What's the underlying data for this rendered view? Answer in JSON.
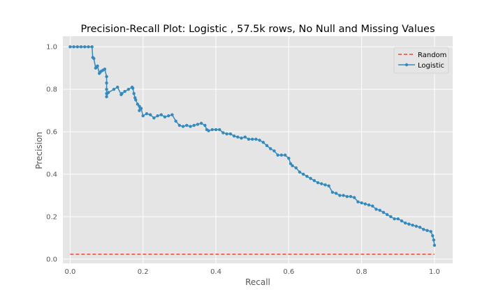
{
  "chart_data": {
    "type": "line",
    "title": "Precision-Recall Plot: Logistic , 57.5k rows, No Null and Missing Values",
    "xlabel": "Recall",
    "ylabel": "Precision",
    "xlim": [
      -0.02,
      1.05
    ],
    "ylim": [
      -0.02,
      1.05
    ],
    "x_ticks": [
      0.0,
      0.2,
      0.4,
      0.6,
      0.8,
      1.0
    ],
    "x_tick_labels": [
      "0.0",
      "0.2",
      "0.4",
      "0.6",
      "0.8",
      "1.0"
    ],
    "y_ticks": [
      0.0,
      0.2,
      0.4,
      0.6,
      0.8,
      1.0
    ],
    "y_tick_labels": [
      "0.0",
      "0.2",
      "0.4",
      "0.6",
      "0.8",
      "1.0"
    ],
    "grid": true,
    "legend_position": "top-right",
    "series": [
      {
        "name": "Random",
        "style": "dashed",
        "color": "#E24A33",
        "marker": false,
        "x": [
          0.0,
          1.0
        ],
        "y": [
          0.023,
          0.023
        ]
      },
      {
        "name": "Logistic",
        "style": "solid",
        "color": "#348ABD",
        "marker": true,
        "x": [
          0.0,
          0.01,
          0.02,
          0.03,
          0.04,
          0.05,
          0.06,
          0.062,
          0.065,
          0.07,
          0.072,
          0.075,
          0.08,
          0.082,
          0.085,
          0.09,
          0.095,
          0.1,
          0.1,
          0.1,
          0.1,
          0.1,
          0.105,
          0.12,
          0.13,
          0.14,
          0.142,
          0.15,
          0.16,
          0.17,
          0.172,
          0.175,
          0.178,
          0.18,
          0.185,
          0.19,
          0.19,
          0.195,
          0.2,
          0.21,
          0.22,
          0.23,
          0.24,
          0.25,
          0.26,
          0.27,
          0.28,
          0.29,
          0.3,
          0.31,
          0.32,
          0.33,
          0.34,
          0.35,
          0.36,
          0.37,
          0.375,
          0.38,
          0.39,
          0.4,
          0.41,
          0.42,
          0.43,
          0.44,
          0.45,
          0.46,
          0.47,
          0.48,
          0.49,
          0.5,
          0.51,
          0.52,
          0.53,
          0.54,
          0.55,
          0.56,
          0.57,
          0.58,
          0.59,
          0.6,
          0.605,
          0.61,
          0.62,
          0.63,
          0.64,
          0.65,
          0.66,
          0.67,
          0.68,
          0.69,
          0.7,
          0.71,
          0.72,
          0.73,
          0.74,
          0.75,
          0.76,
          0.77,
          0.78,
          0.79,
          0.8,
          0.81,
          0.82,
          0.83,
          0.84,
          0.85,
          0.86,
          0.87,
          0.88,
          0.89,
          0.9,
          0.91,
          0.92,
          0.93,
          0.94,
          0.95,
          0.96,
          0.97,
          0.98,
          0.99,
          0.995,
          0.998,
          1.0
        ],
        "y": [
          1.0,
          1.0,
          1.0,
          1.0,
          1.0,
          1.0,
          1.0,
          0.95,
          0.945,
          0.9,
          0.905,
          0.91,
          0.875,
          0.88,
          0.885,
          0.89,
          0.895,
          0.86,
          0.83,
          0.8,
          0.78,
          0.765,
          0.785,
          0.8,
          0.81,
          0.775,
          0.78,
          0.79,
          0.8,
          0.81,
          0.805,
          0.78,
          0.76,
          0.75,
          0.73,
          0.72,
          0.7,
          0.71,
          0.675,
          0.685,
          0.68,
          0.665,
          0.675,
          0.68,
          0.67,
          0.675,
          0.68,
          0.65,
          0.63,
          0.625,
          0.63,
          0.625,
          0.63,
          0.635,
          0.64,
          0.63,
          0.61,
          0.605,
          0.61,
          0.61,
          0.61,
          0.595,
          0.59,
          0.59,
          0.58,
          0.575,
          0.57,
          0.575,
          0.565,
          0.565,
          0.565,
          0.56,
          0.55,
          0.535,
          0.52,
          0.51,
          0.49,
          0.49,
          0.49,
          0.475,
          0.45,
          0.44,
          0.43,
          0.41,
          0.4,
          0.39,
          0.38,
          0.37,
          0.36,
          0.355,
          0.35,
          0.345,
          0.315,
          0.31,
          0.3,
          0.3,
          0.295,
          0.295,
          0.29,
          0.27,
          0.265,
          0.26,
          0.255,
          0.25,
          0.235,
          0.23,
          0.22,
          0.21,
          0.2,
          0.19,
          0.19,
          0.18,
          0.17,
          0.165,
          0.16,
          0.155,
          0.15,
          0.14,
          0.135,
          0.13,
          0.11,
          0.09,
          0.065
        ]
      }
    ]
  }
}
